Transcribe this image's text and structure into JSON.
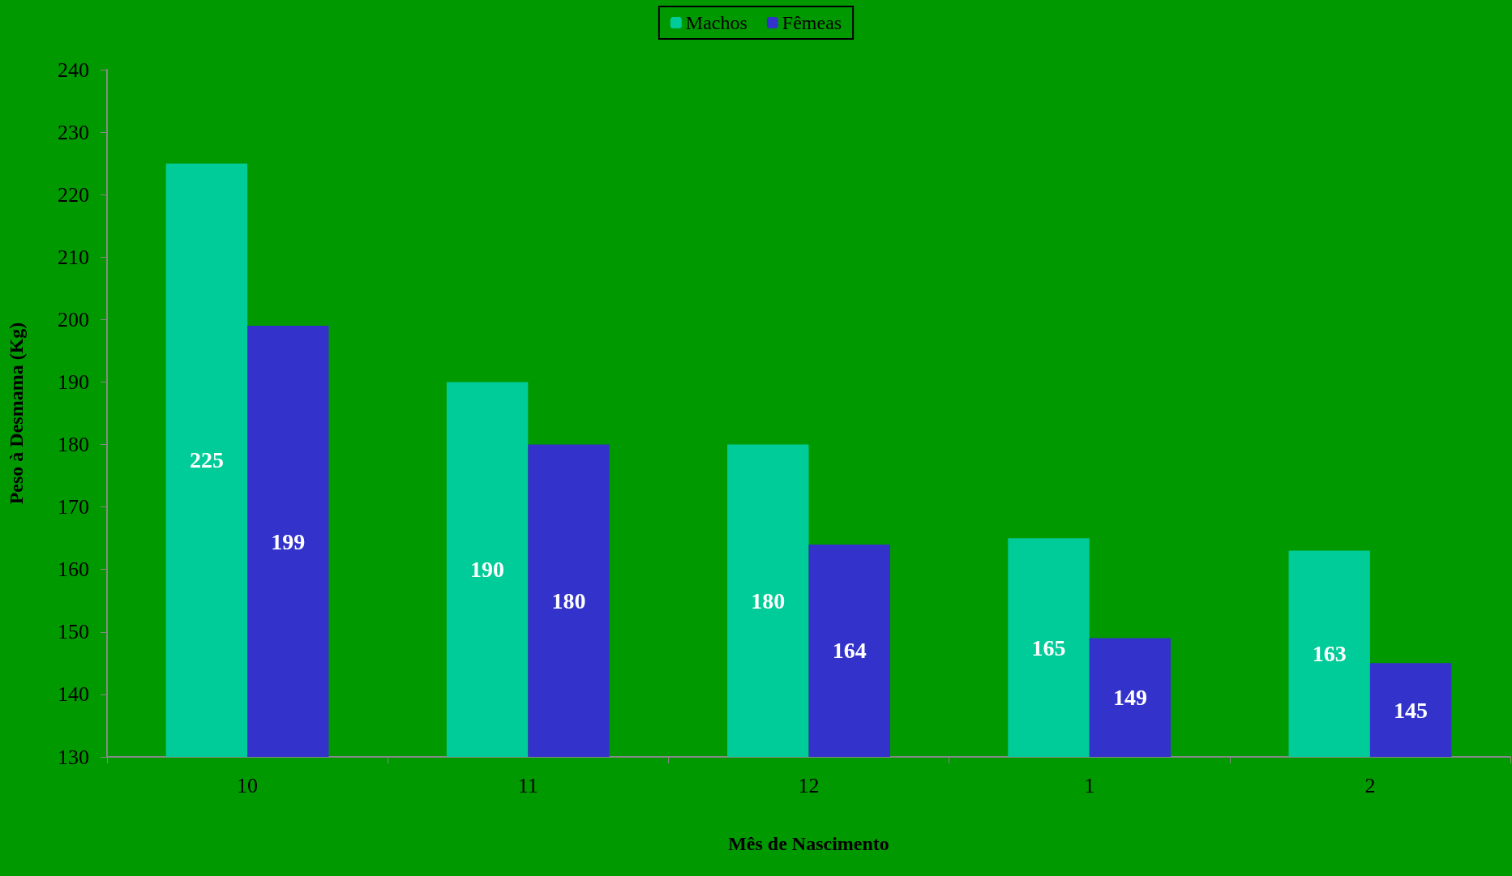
{
  "chart_data": {
    "type": "bar",
    "xlabel": "Mês de Nascimento",
    "ylabel": "Peso à Desmama (Kg)",
    "categories": [
      "10",
      "11",
      "12",
      "1",
      "2"
    ],
    "series": [
      {
        "name": "Machos",
        "color": "#00cc99",
        "values": [
          225,
          190,
          180,
          165,
          163
        ]
      },
      {
        "name": "Fêmeas",
        "color": "#3333cc",
        "values": [
          199,
          180,
          164,
          149,
          145
        ]
      }
    ],
    "ylim": [
      130,
      240
    ],
    "yticks": [
      130,
      140,
      150,
      160,
      170,
      180,
      190,
      200,
      210,
      220,
      230,
      240
    ],
    "grid": false,
    "legend": "top",
    "data_labels": true
  }
}
